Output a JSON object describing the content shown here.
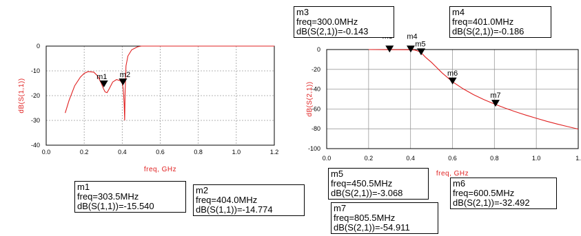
{
  "colors": {
    "trace": "#e02020",
    "grid": "#9a9a9a",
    "marker": "#000000"
  },
  "chart_data": [
    {
      "type": "line",
      "xlabel": "freq, GHz",
      "ylabel": "dB(S(1,1))",
      "xlim": [
        0.0,
        1.2
      ],
      "ylim": [
        -40,
        0
      ],
      "xticks": [
        "0.0",
        "0.2",
        "0.4",
        "0.6",
        "0.8",
        "1.0",
        "1.2"
      ],
      "yticks": [
        "0",
        "-10",
        "-20",
        "-30",
        "-40"
      ],
      "grid": true,
      "series": [
        {
          "x": [
            0.1,
            0.12,
            0.15,
            0.18,
            0.2,
            0.22,
            0.25,
            0.27,
            0.29,
            0.3,
            0.31,
            0.32,
            0.33,
            0.35,
            0.37,
            0.39,
            0.4,
            0.405,
            0.41,
            0.413,
            0.415,
            0.42,
            0.43,
            0.45,
            0.48,
            0.5,
            0.55,
            0.6,
            0.8,
            1.0,
            1.2
          ],
          "y": [
            -27,
            -22,
            -16,
            -12.5,
            -11,
            -10.3,
            -10.5,
            -12,
            -15,
            -17,
            -18.5,
            -18.8,
            -17.5,
            -14.5,
            -13.5,
            -14,
            -15,
            -17,
            -23,
            -30,
            -19,
            -8,
            -4,
            -1.5,
            -0.3,
            0,
            0,
            0,
            0,
            0,
            0
          ]
        }
      ],
      "markers": [
        {
          "name": "m1",
          "x": 0.3035,
          "y": -15.54,
          "freq": "freq=303.5MHz",
          "value": "dB(S(1,1))=-15.540"
        },
        {
          "name": "m2",
          "x": 0.404,
          "y": -14.774,
          "freq": "freq=404.0MHz",
          "value": "dB(S(1,1))=-14.774"
        }
      ]
    },
    {
      "type": "line",
      "xlabel": "freq, GHz",
      "ylabel": "dB(S(2,1))",
      "xlim": [
        0.0,
        1.2
      ],
      "ylim": [
        -100,
        0
      ],
      "xticks": [
        "0.0",
        "0.2",
        "0.4",
        "0.6",
        "0.8",
        "1.0",
        "1."
      ],
      "yticks": [
        "0",
        "-20",
        "-40",
        "-60",
        "-80",
        "-100"
      ],
      "grid": true,
      "series": [
        {
          "x": [
            0.2,
            0.3,
            0.4,
            0.42,
            0.44,
            0.45,
            0.47,
            0.5,
            0.55,
            0.6,
            0.65,
            0.7,
            0.75,
            0.8,
            0.85,
            0.9,
            0.95,
            1.0,
            1.05,
            1.1,
            1.15,
            1.2
          ],
          "y": [
            0,
            -0.143,
            -0.186,
            -0.5,
            -1.8,
            -3.068,
            -7.5,
            -13,
            -23.5,
            -32.492,
            -39.5,
            -45.5,
            -50.5,
            -54.911,
            -59,
            -62.8,
            -66.2,
            -69.4,
            -72.4,
            -75.2,
            -77.8,
            -80.3
          ]
        }
      ],
      "markers": [
        {
          "name": "m3",
          "x": 0.3,
          "y": -0.143,
          "freq": "freq=300.0MHz",
          "value": "dB(S(2,1))=-0.143"
        },
        {
          "name": "m4",
          "x": 0.401,
          "y": -0.186,
          "freq": "freq=401.0MHz",
          "value": "dB(S(2,1))=-0.186"
        },
        {
          "name": "m5",
          "x": 0.4505,
          "y": -3.068,
          "freq": "freq=450.5MHz",
          "value": "dB(S(2,1))=-3.068"
        },
        {
          "name": "m6",
          "x": 0.6005,
          "y": -32.492,
          "freq": "freq=600.5MHz",
          "value": "dB(S(2,1))=-32.492"
        },
        {
          "name": "m7",
          "x": 0.8055,
          "y": -54.911,
          "freq": "freq=805.5MHz",
          "value": "dB(S(2,1))=-54.911"
        }
      ]
    }
  ]
}
